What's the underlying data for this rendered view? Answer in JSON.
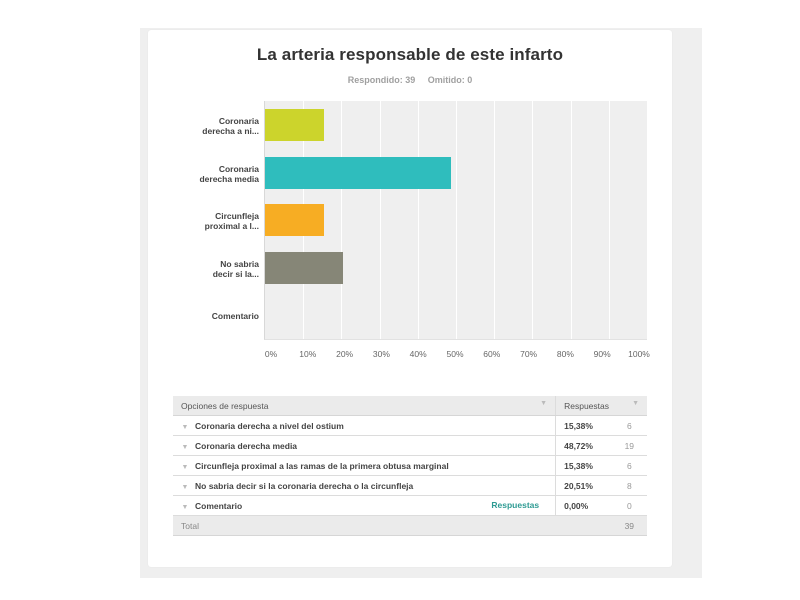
{
  "question": {
    "title": "La arteria responsable de este infarto",
    "answered_label": "Respondido: 39",
    "skipped_label": "Omitido: 0"
  },
  "chart_data": {
    "type": "bar",
    "orientation": "horizontal",
    "title": "La arteria responsable de este infarto",
    "categories": [
      "Coronaria derecha a ni...",
      "Coronaria derecha media",
      "Circunfleja proximal a l...",
      "No sabria decir si la...",
      "Comentario"
    ],
    "values": [
      15.38,
      48.72,
      15.38,
      20.51,
      0
    ],
    "colors": [
      "#ccd42c",
      "#2fbdbd",
      "#f7ad23",
      "#868677",
      "#cccccc"
    ],
    "xlabel": "",
    "ylabel": "",
    "xlim": [
      0,
      100
    ],
    "xticks": [
      "0%",
      "10%",
      "20%",
      "30%",
      "40%",
      "50%",
      "60%",
      "70%",
      "80%",
      "90%",
      "100%"
    ],
    "grid": true
  },
  "labels": [
    {
      "line1": "Coronaria",
      "line2": "derecha a ni..."
    },
    {
      "line1": "Coronaria",
      "line2": "derecha media"
    },
    {
      "line1": "Circunfleja",
      "line2": "proximal a l..."
    },
    {
      "line1": "No sabria",
      "line2": "decir si la..."
    },
    {
      "line1": "Comentario",
      "line2": ""
    }
  ],
  "table": {
    "header_options": "Opciones de respuesta",
    "header_responses": "Respuestas",
    "rows": [
      {
        "option": "Coronaria derecha a nivel del ostium",
        "percent": "15,38%",
        "count": "6"
      },
      {
        "option": "Coronaria derecha media",
        "percent": "48,72%",
        "count": "19"
      },
      {
        "option": "Circunfleja proximal a las ramas de la primera obtusa marginal",
        "percent": "15,38%",
        "count": "6"
      },
      {
        "option": "No sabria decir si la coronaria derecha o la circunfleja",
        "percent": "20,51%",
        "count": "8"
      },
      {
        "option": "Comentario",
        "link": "Respuestas",
        "percent": "0,00%",
        "count": "0"
      }
    ],
    "total_label": "Total",
    "total_count": "39"
  },
  "icons": {
    "caret": "▼"
  }
}
